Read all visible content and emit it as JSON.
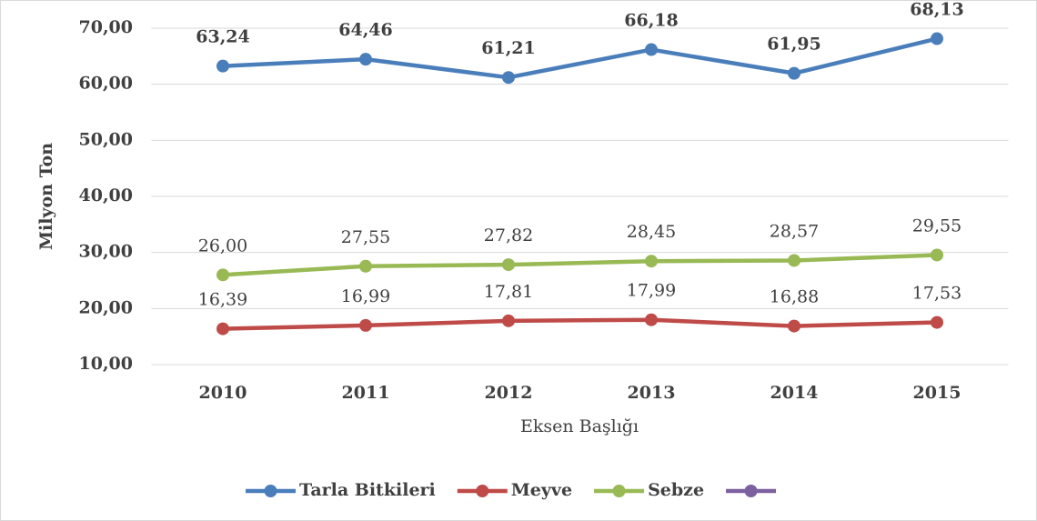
{
  "chart_data": {
    "type": "line",
    "y_label": "Milyon Ton",
    "x_label": "Eksen Başlığı",
    "categories": [
      "2010",
      "2011",
      "2012",
      "2013",
      "2014",
      "2015"
    ],
    "series": [
      {
        "name": "Tarla Bitkileri",
        "color": "#4a7ebb",
        "values": [
          63.24,
          64.46,
          61.21,
          66.18,
          61.95,
          68.13
        ],
        "value_labels": [
          "63,24",
          "64,46",
          "61,21",
          "66,18",
          "61,95",
          "68,13"
        ]
      },
      {
        "name": "Meyve",
        "color": "#be4b48",
        "values": [
          16.39,
          16.99,
          17.81,
          17.99,
          16.88,
          17.53
        ],
        "value_labels": [
          "16,39",
          "16,99",
          "17,81",
          "17,99",
          "16,88",
          "17,53"
        ]
      },
      {
        "name": "Sebze",
        "color": "#98b954",
        "values": [
          26.0,
          27.55,
          27.82,
          28.45,
          28.57,
          29.55
        ],
        "value_labels": [
          "26,00",
          "27,55",
          "27,82",
          "28,45",
          "28,57",
          "29,55"
        ]
      },
      {
        "color": "#7d60a0",
        "values": [
          null,
          null,
          null,
          null,
          null,
          null
        ]
      }
    ],
    "ylim": [
      10,
      70
    ],
    "yticks": [
      {
        "value": 10,
        "label": "10,00"
      },
      {
        "value": 20,
        "label": "20,00"
      },
      {
        "value": 30,
        "label": "30,00"
      },
      {
        "value": 40,
        "label": "40,00"
      },
      {
        "value": 50,
        "label": "50,00"
      },
      {
        "value": 60,
        "label": "60,00"
      },
      {
        "value": 70,
        "label": "70,00"
      }
    ],
    "grid": true
  }
}
